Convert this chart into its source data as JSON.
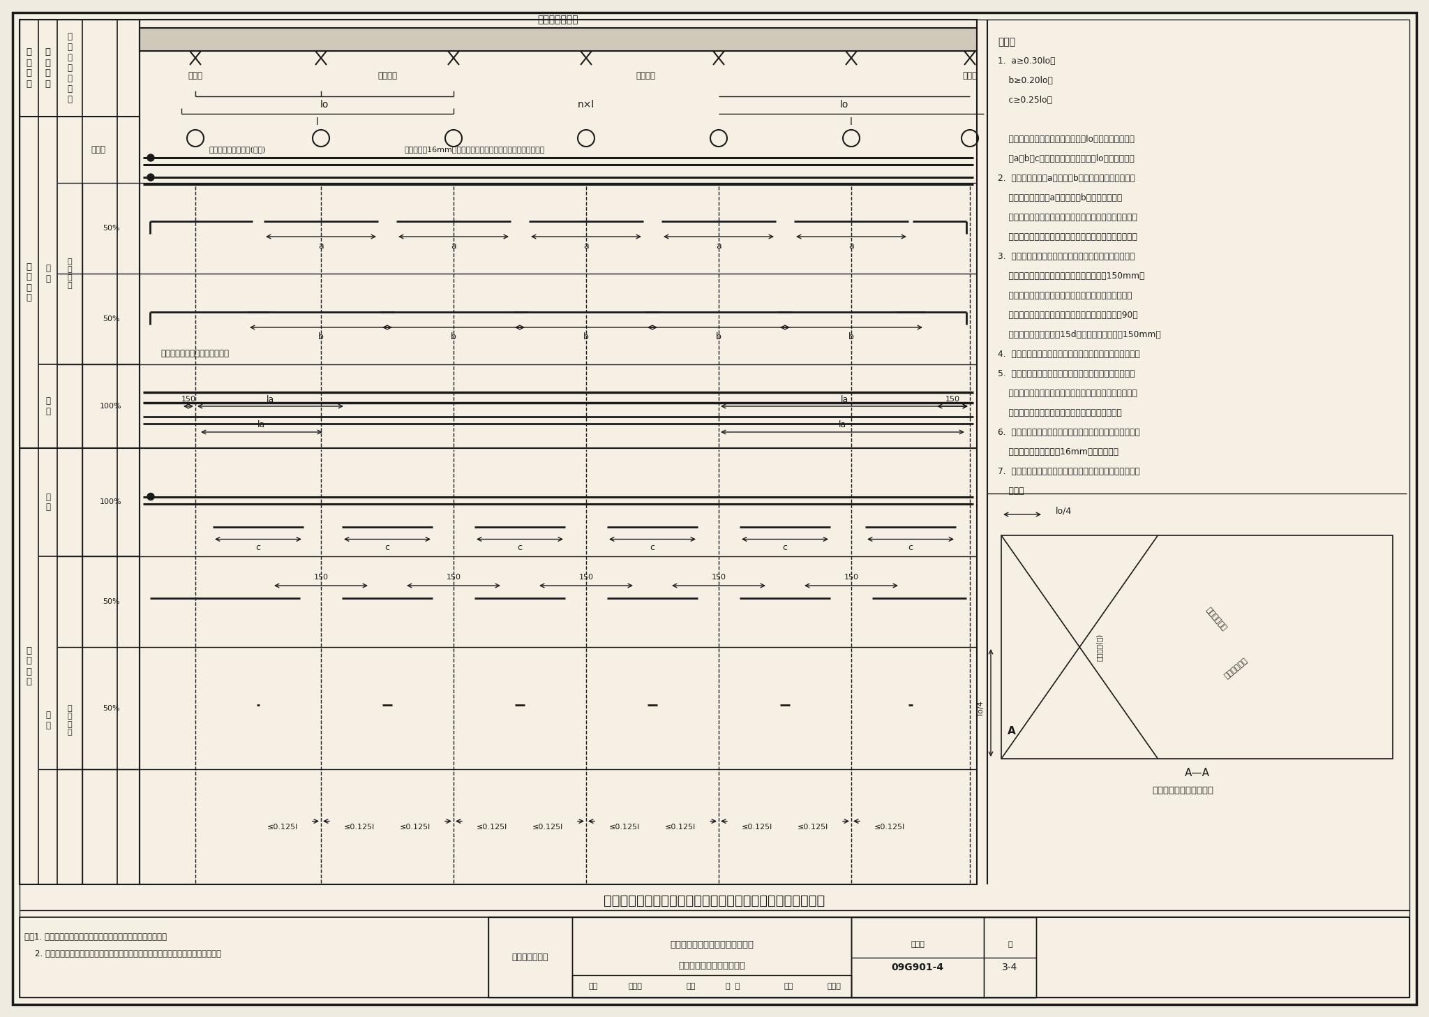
{
  "bg_color": "#f0ebe0",
  "paper_color": "#f5f0e3",
  "line_color": "#1a1a1a",
  "title_main": "非抗震无柱帽柱上板带、跨中板带分离式钢筋排布构造示意图",
  "note1": "注：1. 图示板带边支座为柱、框架梁或剪力墙；中间支座为柱。",
  "note2": "    2. 在柱与柱之间板块交界无支座的范围，板的虚拟支座定位及宽度尺寸以设计为准。",
  "footer_left1": "无梁楼盖现浇板",
  "footer_center1": "非抗震无柱帽柱上板带、跨中板带",
  "footer_center2": "分离式钢筋排布构造示意图",
  "footer_atlas_label": "图集号",
  "footer_atlas_val": "09G901-4",
  "footer_page_label": "页",
  "footer_page_val": "3-4",
  "sig_review": "审核",
  "sig_reviewer": "苟继东",
  "sig_check": "校对",
  "sig_checker": "姚  刚",
  "sig_design": "设计",
  "sig_designer": "张月明",
  "notes_all": [
    "说明：",
    "1.  a≥0.30lo；",
    "    b≥0.20lo；",
    "    c≥0.25lo。",
    " ",
    "    若某中间支座左、右邻跨的净跨值lo不相同，该支座两",
    "    旁a，b，c值均应按两净跨中较大的lo值计算确定。",
    "2.  非通长钢筋中的a长度筋与b长度筋间隔布置。非通长",
    "    钢筋总数为单数，a长度筋应比b长度筋多一根。",
    "    跨中板带底部伸入与不伸入支座的钢筋间隔布置。底部筋",
    "    总数为单数，伸入支座钢筋应比不伸入支座钢筋多一根。",
    "3.  边跨板带底部钢筋伸入边梁、墙、柱内的锚固长度不仅",
    "    要满足具体设计值，且其水平段长度不小于150mm。",
    "    边跨板带顶部钢筋伸入边梁、墙、柱内的锚固长度不仅",
    "    要满足具体设计值，且应在板边缘横向钢筋内侧做90度",
    "    弯折，其垂直段长度为15d；水平段长度不小于150mm。",
    "4.  边跨板带悬挑时，顶部钢筋应勾住板边缘横向通长钢筋。",
    "5.  对于边支座有梁的无梁板，在外角顶部沿对角线方向和",
    "    外角底部垂直于对角线方向分别增配满足具体设计要求的",
    "    受力钢筋（见本页：无梁楼盖板外角附加钢筋）。",
    "6.  当各边跨板带支座间无梁时，应在板带外边缘的上、下部",
    "    各设置一根直径不小于16mm的通长钢筋。",
    "7.  本图所示仅为板带分离式排布构造要求，实际配筋以设计",
    "    为准。"
  ]
}
